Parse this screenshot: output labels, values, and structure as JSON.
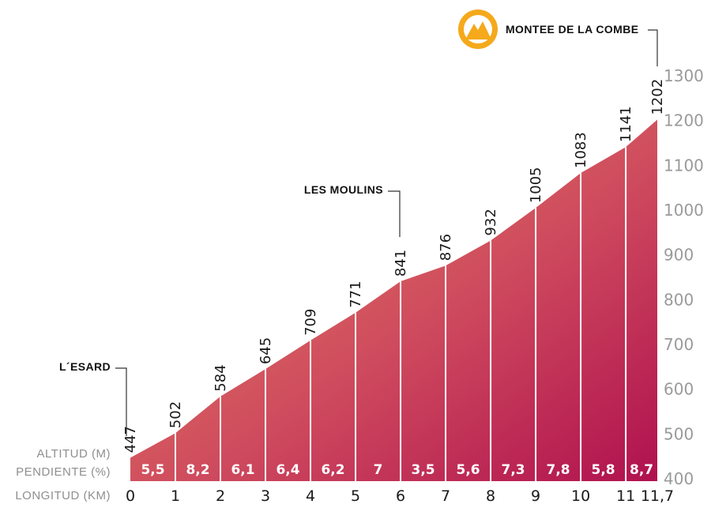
{
  "chart_data": {
    "type": "area",
    "title": "MONTEE DE LA COMBE",
    "row_labels": {
      "altitude": "ALTITUD (M)",
      "gradient": "PENDIENTE (%)",
      "distance": "LONGITUD (KM)"
    },
    "x": [
      0,
      1,
      2,
      3,
      4,
      5,
      6,
      7,
      8,
      9,
      10,
      11,
      11.7
    ],
    "x_labels": [
      "0",
      "1",
      "2",
      "3",
      "4",
      "5",
      "6",
      "7",
      "8",
      "9",
      "10",
      "11",
      "11,7"
    ],
    "altitude": [
      447,
      502,
      584,
      645,
      709,
      771,
      841,
      876,
      932,
      1005,
      1083,
      1141,
      1202
    ],
    "gradients": [
      "5,5",
      "8,2",
      "6,1",
      "6,4",
      "6,2",
      "7",
      "3,5",
      "5,6",
      "7,3",
      "7,8",
      "5,8",
      "8,7"
    ],
    "y_ticks": [
      400,
      500,
      600,
      700,
      800,
      900,
      1000,
      1100,
      1200,
      1300
    ],
    "ylim": [
      400,
      1300
    ],
    "xlim": [
      0,
      11.7
    ],
    "annotations": [
      {
        "label": "L´ESARD",
        "x": 0
      },
      {
        "label": "LES MOULINS",
        "x": 6
      },
      {
        "label": "MONTEE DE LA COMBE",
        "x": 11.7
      }
    ],
    "colors": {
      "low": "#e07b5c",
      "mid": "#cf4f5c",
      "high": "#b21250",
      "logo": "#f5a91b",
      "axis_text": "#9a9a9a"
    },
    "logo_icon": "mountain-icon"
  }
}
